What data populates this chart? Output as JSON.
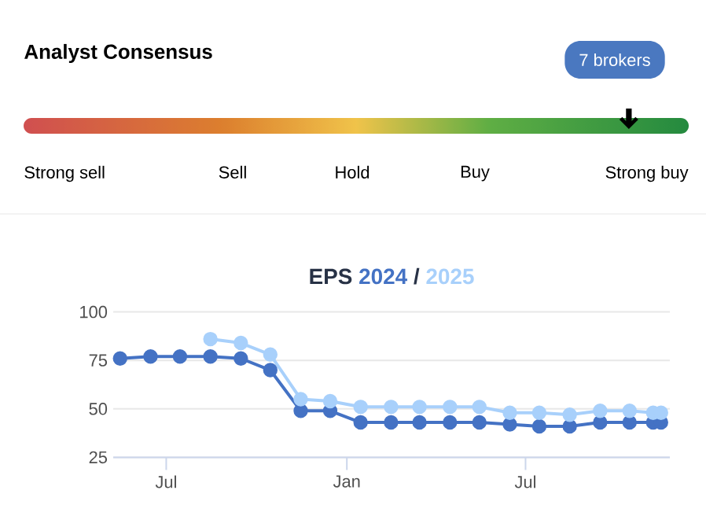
{
  "chart_data": [
    {
      "type": "other",
      "title": "Analyst Consensus",
      "annotations": [
        "7 brokers"
      ],
      "categories": [
        "Strong sell",
        "Sell",
        "Hold",
        "Buy",
        "Strong buy"
      ],
      "colors": [
        "#d04f50",
        "#dc7f2e",
        "#f0c34a",
        "#5fae44",
        "#248a3f"
      ]
    },
    {
      "type": "line",
      "title": "EPS",
      "annotations": [
        "/"
      ],
      "x": [
        "2023-05-15",
        "2023-06-15",
        "2023-07-15",
        "2023-08-15",
        "2023-09-15",
        "2023-10-15",
        "2023-11-15",
        "2023-12-15",
        "2024-01-15",
        "2024-02-15",
        "2024-03-15",
        "2024-04-15",
        "2024-05-15",
        "2024-06-15",
        "2024-07-15",
        "2024-08-15",
        "2024-09-15",
        "2024-10-15",
        "2024-11-08",
        "2024-11-16"
      ],
      "series": [
        {
          "name": "2024",
          "color": "#4472c4",
          "values": [
            76,
            77,
            77,
            77,
            76,
            70,
            49,
            49,
            43,
            43,
            43,
            43,
            43,
            42,
            41,
            41,
            43,
            43,
            43,
            43
          ]
        },
        {
          "name": "2025",
          "color": "#a8d0fb",
          "values": [
            null,
            null,
            null,
            86,
            84,
            78,
            55,
            54,
            51,
            51,
            51,
            51,
            51,
            48,
            48,
            47,
            49,
            49,
            48,
            48
          ]
        }
      ],
      "xlim": [
        "2023-05-08",
        "2024-11-25"
      ],
      "xticks": [
        {
          "value": "2023-07-01",
          "label": "Jul"
        },
        {
          "value": "2024-01-01",
          "label": "Jan"
        },
        {
          "value": "2024-07-01",
          "label": "Jul"
        }
      ],
      "ylim": [
        25,
        100
      ],
      "yticks": [
        25,
        50,
        75,
        100
      ],
      "grid": "y",
      "legend": "top",
      "marker": "circle",
      "line_style": "solid"
    }
  ]
}
